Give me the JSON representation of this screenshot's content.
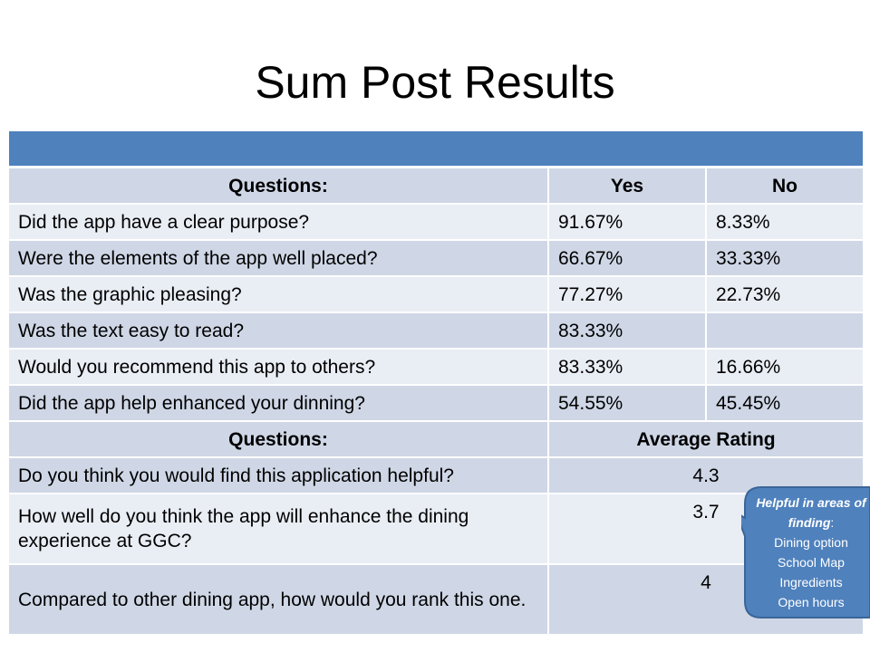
{
  "title": "Sum Post Results",
  "table": {
    "header1": [
      "Questions:",
      "Yes",
      "No"
    ],
    "rows": [
      {
        "q": "Did the app have a clear purpose?",
        "yes": "91.67%",
        "no": "8.33%"
      },
      {
        "q": "Were the elements of the app well placed?",
        "yes": "66.67%",
        "no": "33.33%"
      },
      {
        "q": "Was the graphic pleasing?",
        "yes": "77.27%",
        "no": "22.73%"
      },
      {
        "q": "Was the text easy to read?",
        "yes": "83.33%",
        "no": ""
      },
      {
        "q": "Would you recommend this app to others?",
        "yes": "83.33%",
        "no": "16.66%"
      },
      {
        "q": "Did the app help enhanced your dinning?",
        "yes": "54.55%",
        "no": "45.45%"
      }
    ],
    "header2": [
      "Questions:",
      "Average Rating"
    ],
    "rating_rows": [
      {
        "q": "Do you think you would find this application helpful?",
        "rating": "4.3"
      },
      {
        "q": "How well do you think the app will enhance the dining experience at GGC?",
        "rating": "3.7"
      },
      {
        "q": "Compared to other dining app, how would you rank this one.",
        "rating": "4"
      }
    ]
  },
  "callout": {
    "heading": "Helpful in areas of finding",
    "colon": ":",
    "items": [
      "Dining option",
      "School Map",
      "Ingredients",
      "Open hours"
    ]
  },
  "colors": {
    "band": "#4f81bd",
    "row_dark": "#cfd7e6",
    "row_light": "#e9edf4",
    "callout_fill": "#4f81bd",
    "callout_border": "#3a6597"
  }
}
